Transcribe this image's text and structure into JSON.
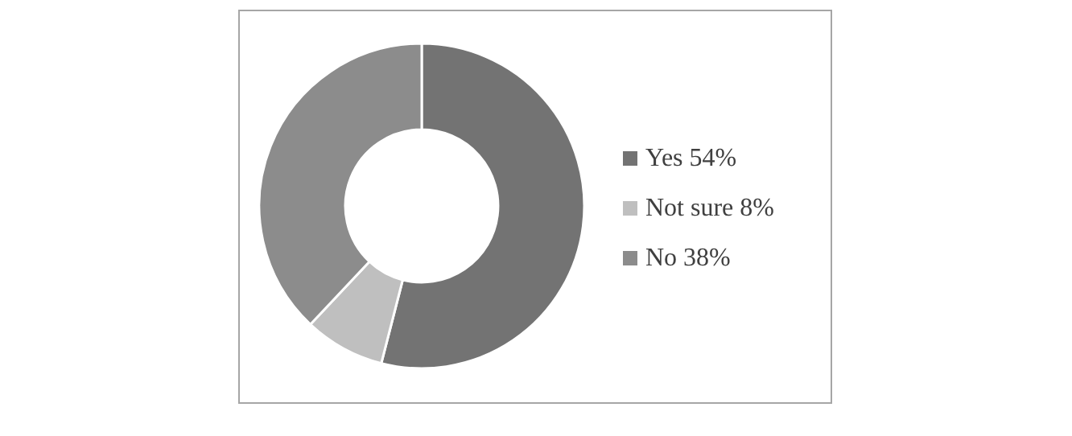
{
  "chart_data": {
    "type": "donut",
    "categories": [
      "Yes 54%",
      "Not sure 8%",
      "No 38%"
    ],
    "values": [
      54,
      8,
      38
    ],
    "colors": [
      "#737373",
      "#bfbfbf",
      "#8c8c8c"
    ],
    "legend": "right"
  }
}
